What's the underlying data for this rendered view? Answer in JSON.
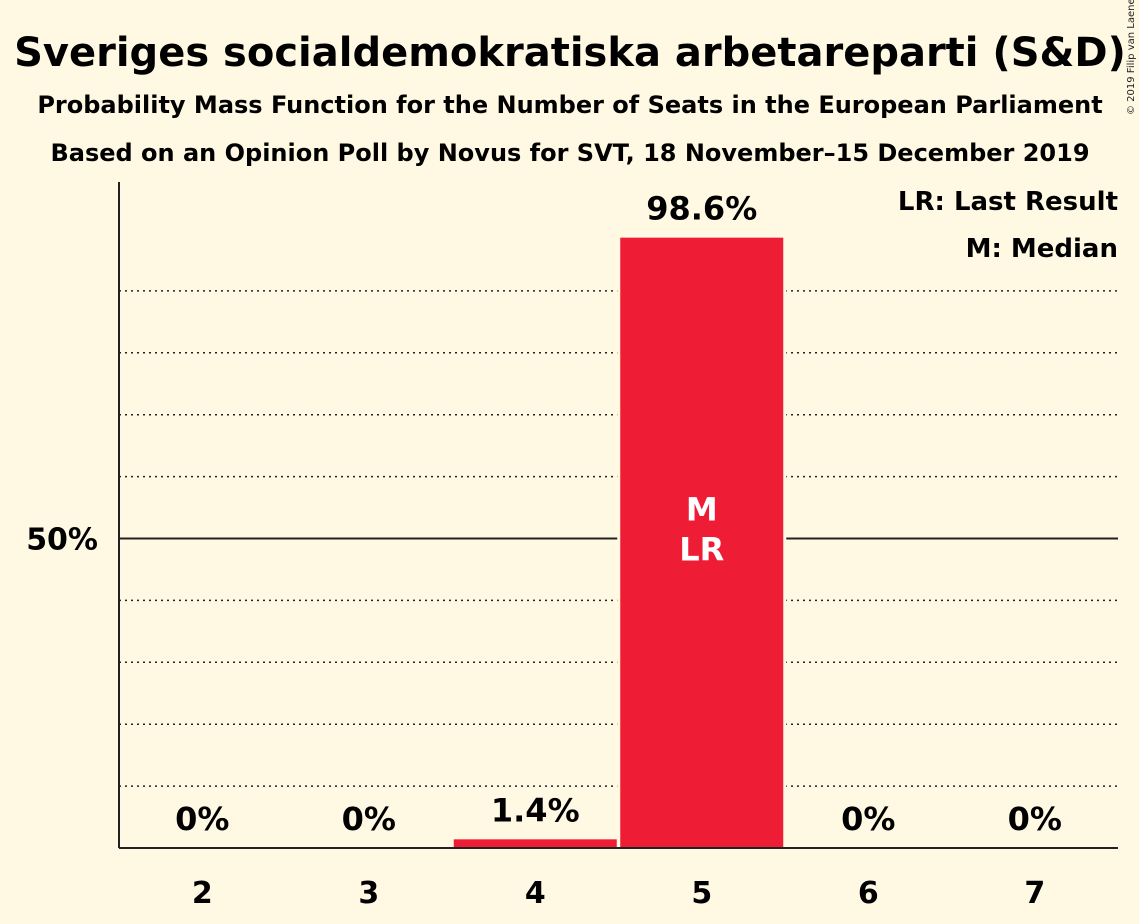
{
  "title": "Sveriges socialdemokratiska arbetareparti (S&D)",
  "subtitle1": "Probability Mass Function for the Number of Seats in the European Parliament",
  "subtitle2": "Based on an Opinion Poll by Novus for SVT, 18 November–15 December 2019",
  "copyright": "© 2019 Filip van Laenen",
  "legend": {
    "lr": "LR: Last Result",
    "m": "M: Median"
  },
  "colors": {
    "bar": "#ee1c35",
    "background": "#fff9e3",
    "text": "#222222"
  },
  "chart_data": {
    "type": "bar",
    "categories": [
      "2",
      "3",
      "4",
      "5",
      "6",
      "7"
    ],
    "values": [
      0,
      0,
      1.4,
      98.6,
      0,
      0
    ],
    "value_labels": [
      "0%",
      "0%",
      "1.4%",
      "98.6%",
      "0%",
      "0%"
    ],
    "inside_labels": {
      "5": [
        "M",
        "LR"
      ]
    },
    "ylim": [
      0,
      100
    ],
    "y_tick_labels": [
      {
        "value": 50,
        "label": "50%"
      }
    ],
    "grid": "dotted every 10%, solid at 50%"
  }
}
